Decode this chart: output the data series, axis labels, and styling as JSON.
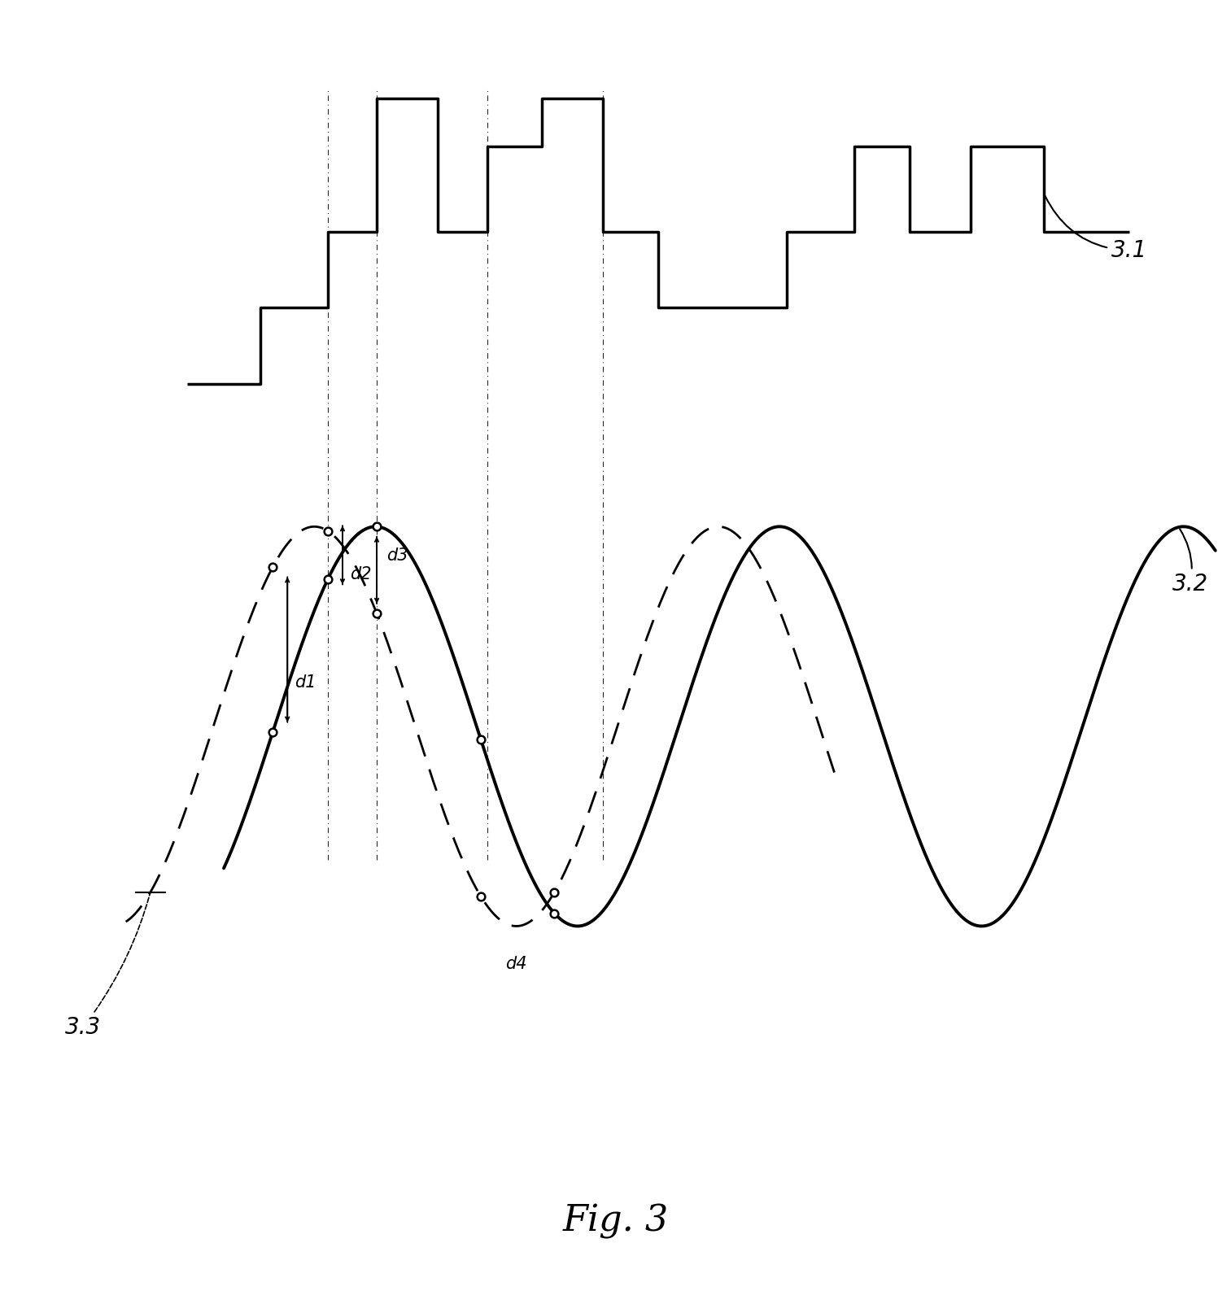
{
  "fig_label": "Fig. 3",
  "label_31": "3.1",
  "label_32": "3.2",
  "label_33": "3.3",
  "label_d1": "d1",
  "label_d2": "d2",
  "label_d3": "d3",
  "label_d4": "d4",
  "bg_color": "#ffffff",
  "line_color": "#000000",
  "figsize": [
    15.13,
    15.87
  ],
  "dpi": 100,
  "lw_main": 2.5,
  "lw_dash": 2.0,
  "lw_vline": 1.2,
  "marker_size": 7
}
